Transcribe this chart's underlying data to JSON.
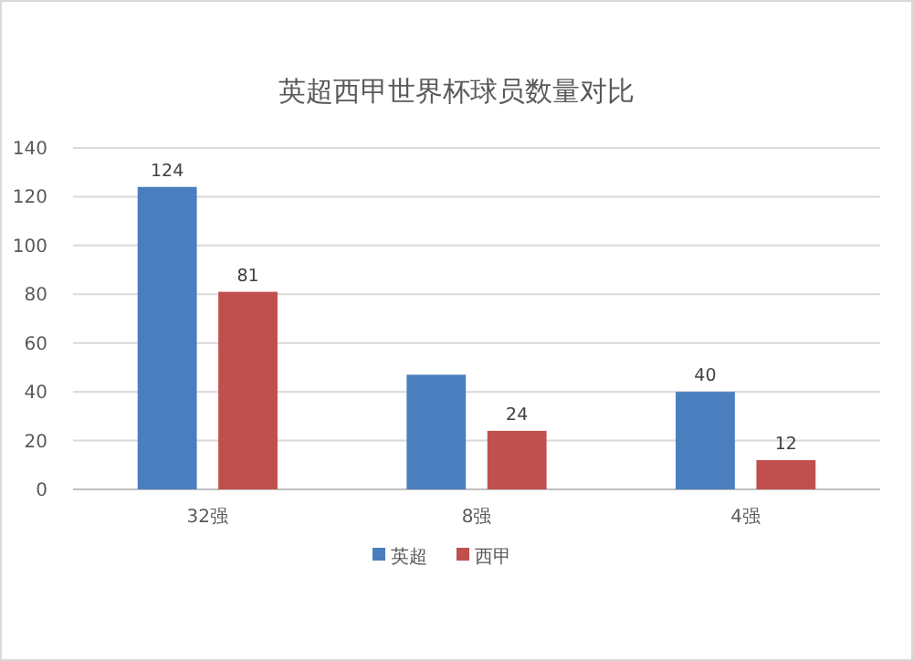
{
  "chart_data": {
    "type": "bar",
    "title": "英超西甲世界杯球员数量对比",
    "categories": [
      "32强",
      "8强",
      "4强"
    ],
    "series": [
      {
        "name": "英超",
        "color": "#4a7ebf",
        "values": [
          124,
          47,
          40
        ],
        "value_labels": [
          "124",
          null,
          "40"
        ]
      },
      {
        "name": "西甲",
        "color": "#c0504d",
        "values": [
          81,
          24,
          12
        ],
        "value_labels": [
          "81",
          "24",
          "12"
        ]
      }
    ],
    "ylim": [
      0,
      140
    ],
    "yticks": [
      0,
      20,
      40,
      60,
      80,
      100,
      120,
      140
    ],
    "grid": "y",
    "legend": "bottom"
  }
}
